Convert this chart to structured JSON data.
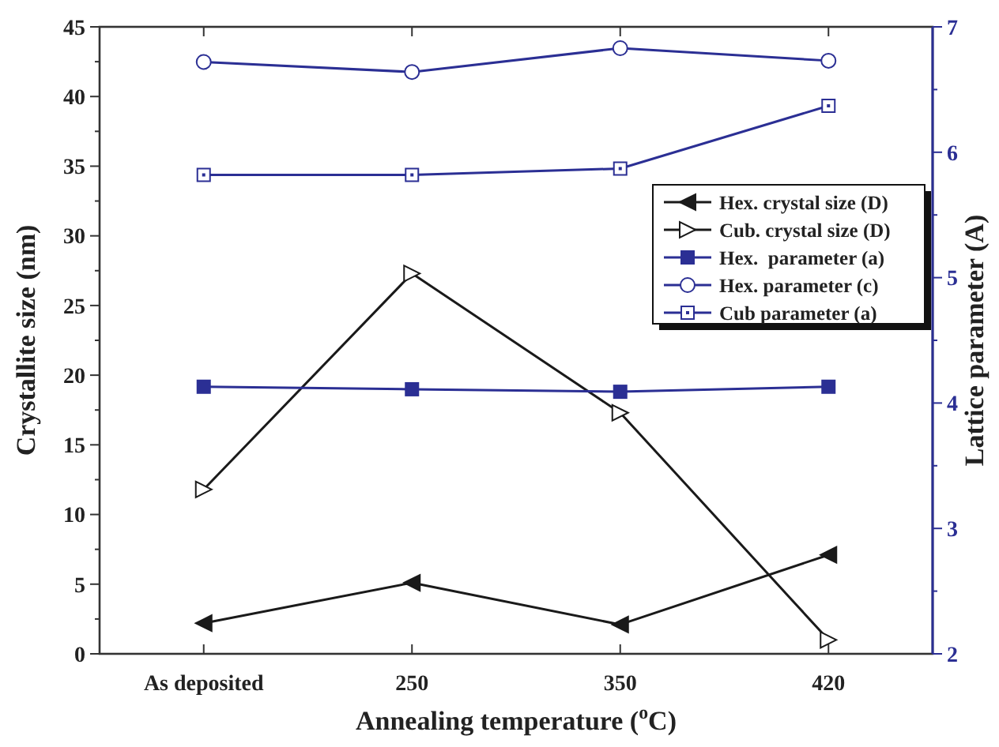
{
  "chart_data": {
    "type": "line",
    "xlabel": "Annealing temperature ($^{o}$C)",
    "ylabel": "Crystallite size (nm)",
    "y2label": "Lattice parameter (A)",
    "categories": [
      "As deposited",
      "250",
      "350",
      "420"
    ],
    "ylim": [
      0,
      45
    ],
    "yticks": [
      0,
      {
        "value": 2.5,
        "label": null
      },
      5,
      {
        "value": 7.5,
        "label": null
      },
      10,
      {
        "value": 12.5,
        "label": null
      },
      15,
      {
        "value": 17.5,
        "label": null
      },
      20,
      {
        "value": 22.5,
        "label": null
      },
      25,
      {
        "value": 27.5,
        "label": null
      },
      30,
      {
        "value": 32.5,
        "label": null
      },
      35,
      {
        "value": 37.5,
        "label": null
      },
      40,
      {
        "value": 42.5,
        "label": null
      },
      45
    ],
    "y2lim": [
      2,
      7
    ],
    "y2ticks": [
      2,
      {
        "value": 2.5,
        "label": null
      },
      3,
      {
        "value": 3.5,
        "label": null
      },
      4,
      {
        "value": 4.5,
        "label": null
      },
      5,
      {
        "value": 5.5,
        "label": null
      },
      6,
      {
        "value": 6.5,
        "label": null
      },
      7
    ],
    "legend": "right",
    "grid": false,
    "series": [
      {
        "name": "Hex. crystal size (D)",
        "color": "#1a1a1a",
        "marker": "triangle-left-filled",
        "values": [
          2.2,
          5.1,
          2.1,
          7.1
        ]
      },
      {
        "name": "Cub. crystal size (D)",
        "color": "#1a1a1a",
        "marker": "triangle-right-open",
        "values": [
          11.8,
          27.3,
          17.3,
          1.0
        ]
      },
      {
        "name": "Hex.  parameter (a)",
        "color": "#2b2f94",
        "marker": "square-filled",
        "axis": "y2",
        "values": [
          4.13,
          4.11,
          4.09,
          4.13
        ]
      },
      {
        "name": "Hex. parameter (c)",
        "color": "#2b2f94",
        "marker": "circle-open",
        "axis": "y2",
        "values": [
          6.72,
          6.64,
          6.83,
          6.73
        ]
      },
      {
        "name": "Cub parameter (a)",
        "color": "#2b2f94",
        "marker": "square-dot",
        "axis": "y2",
        "values": [
          5.82,
          5.82,
          5.87,
          6.37
        ]
      }
    ]
  }
}
